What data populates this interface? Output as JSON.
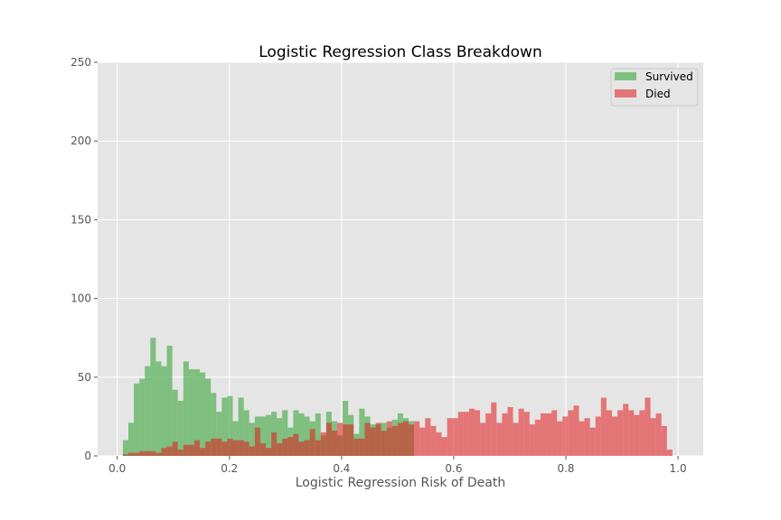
{
  "chart_data": {
    "type": "bar",
    "title": "Logistic Regression Class Breakdown",
    "xlabel": "Logistic Regression Risk of Death",
    "ylabel": "",
    "xlim": [
      -0.035,
      1.045
    ],
    "ylim": [
      0,
      250
    ],
    "xticks": [
      "0.0",
      "0.2",
      "0.4",
      "0.6",
      "0.8",
      "1.0"
    ],
    "yticks": [
      "0",
      "50",
      "100",
      "150",
      "200",
      "250"
    ],
    "grid": true,
    "legend_position": "top-right",
    "bins": {
      "start": 0.01,
      "width": 0.0098,
      "count": 100
    },
    "series": [
      {
        "name": "Survived",
        "color": "#2ca02c",
        "values": [
          10,
          21,
          46,
          49,
          57,
          75,
          60,
          57,
          70,
          42,
          35,
          60,
          55,
          55,
          53,
          49,
          40,
          28,
          37,
          38,
          22,
          37,
          29,
          21,
          25,
          25,
          26,
          28,
          24,
          29,
          18,
          29,
          27,
          25,
          22,
          27,
          13,
          28,
          22,
          13,
          35,
          26,
          14,
          30,
          25,
          20,
          20,
          21,
          18,
          23,
          27,
          24,
          22,
          0,
          0,
          0,
          0,
          0,
          0,
          0,
          0,
          0,
          0,
          0,
          0,
          0,
          0,
          0,
          0,
          0,
          0,
          0,
          0,
          0,
          0,
          0,
          0,
          0,
          0,
          0,
          0,
          0,
          0,
          0,
          0,
          0,
          0,
          0,
          0,
          0,
          0,
          0,
          0,
          0,
          0,
          0,
          0,
          0,
          0,
          0
        ]
      },
      {
        "name": "Died",
        "color": "#e41a1c",
        "values": [
          1,
          2,
          2,
          3,
          3,
          3,
          2,
          5,
          6,
          9,
          4,
          7,
          7,
          10,
          5,
          9,
          11,
          11,
          9,
          11,
          10,
          10,
          9,
          6,
          18,
          8,
          5,
          15,
          8,
          11,
          12,
          14,
          9,
          10,
          17,
          10,
          15,
          21,
          16,
          21,
          20,
          20,
          11,
          11,
          21,
          18,
          21,
          16,
          22,
          19,
          21,
          22,
          20,
          22,
          18,
          24,
          19,
          15,
          12,
          24,
          24,
          28,
          28,
          30,
          29,
          21,
          27,
          34,
          21,
          27,
          31,
          21,
          30,
          28,
          20,
          23,
          27,
          27,
          29,
          22,
          25,
          29,
          32,
          22,
          24,
          18,
          25,
          37,
          29,
          25,
          29,
          33,
          29,
          26,
          29,
          37,
          24,
          27,
          19,
          4
        ]
      }
    ]
  }
}
